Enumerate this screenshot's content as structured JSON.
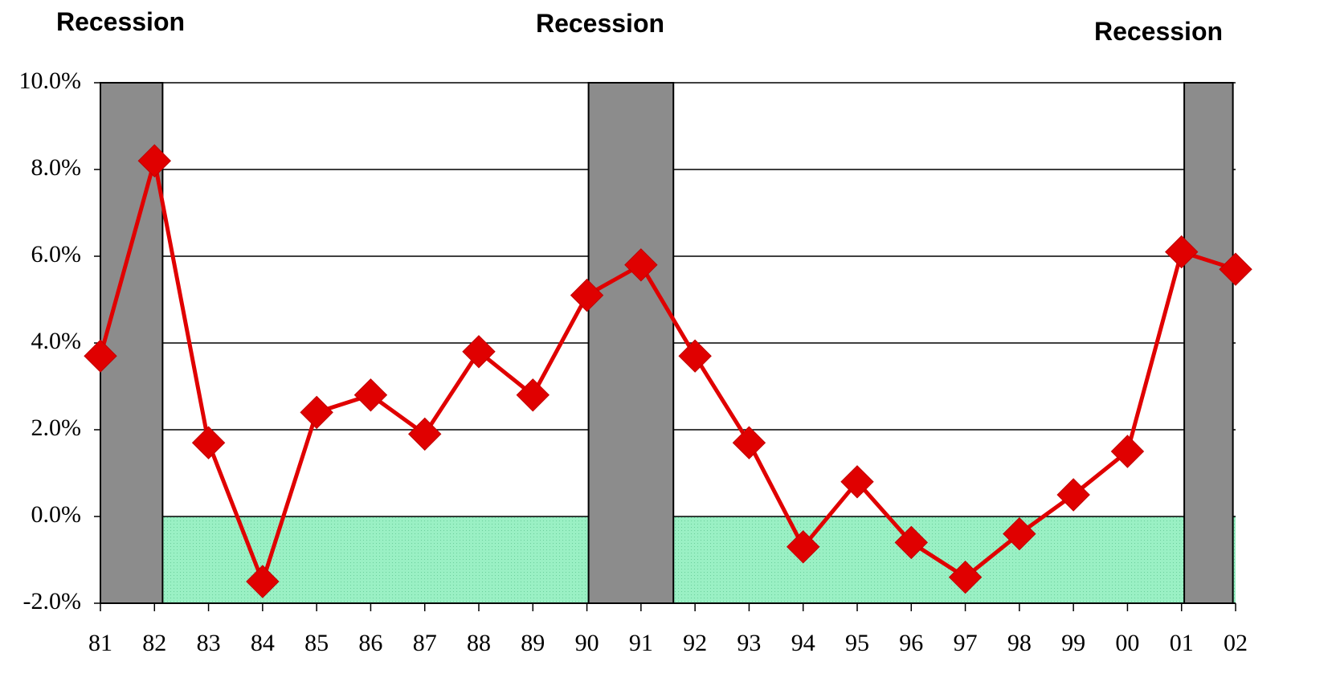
{
  "chart_data": {
    "type": "line",
    "categories": [
      "81",
      "82",
      "83",
      "84",
      "85",
      "86",
      "87",
      "88",
      "89",
      "90",
      "91",
      "92",
      "93",
      "94",
      "95",
      "96",
      "97",
      "98",
      "99",
      "00",
      "01",
      "02"
    ],
    "series": [
      {
        "name": null,
        "color": "#e00000",
        "values": [
          3.7,
          8.2,
          1.7,
          -1.5,
          2.4,
          2.8,
          1.9,
          3.8,
          2.8,
          5.1,
          5.8,
          3.7,
          1.7,
          -0.7,
          0.8,
          -0.6,
          -1.4,
          -0.4,
          0.5,
          1.5,
          6.1,
          5.7
        ]
      }
    ],
    "ylim": [
      -2,
      10
    ],
    "yticks": [
      {
        "value": -2,
        "label": "-2.0%"
      },
      {
        "value": 0,
        "label": "0.0%"
      },
      {
        "value": 2,
        "label": "2.0%"
      },
      {
        "value": 4,
        "label": "4.0%"
      },
      {
        "value": 6,
        "label": "6.0%"
      },
      {
        "value": 8,
        "label": "8.0%"
      },
      {
        "value": 10,
        "label": "10.0%"
      }
    ],
    "grid": true,
    "recessions": [
      {
        "label": "Recession",
        "start": 0,
        "end": 1.15
      },
      {
        "label": "Recession",
        "start": 9.03,
        "end": 10.6
      },
      {
        "label": "Recession",
        "start": 20.05,
        "end": 20.95
      }
    ]
  }
}
